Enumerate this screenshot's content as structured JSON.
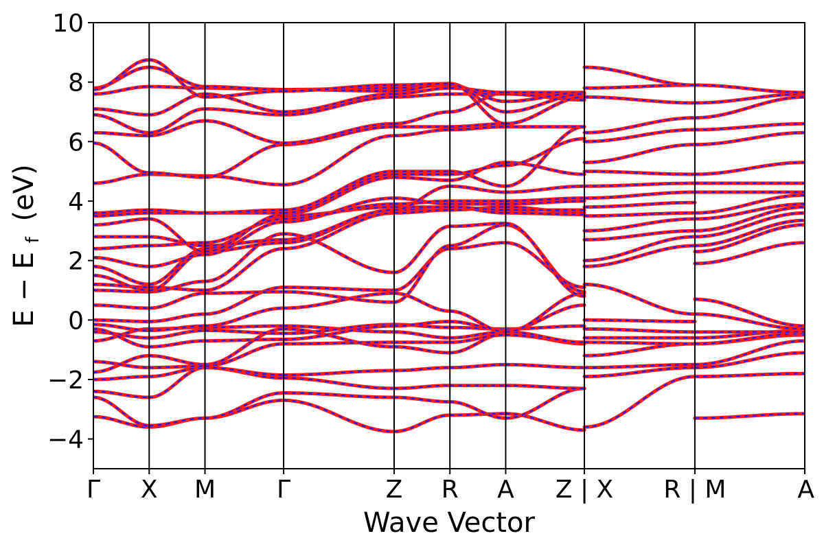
{
  "chart_data": {
    "type": "line",
    "title": "",
    "xlabel": "Wave Vector",
    "ylabel_main": "E − E",
    "ylabel_sub": "f",
    "ylabel_unit": "(eV)",
    "ylim": [
      -5,
      10
    ],
    "yticks": [
      {
        "value": -4,
        "label": "−4"
      },
      {
        "value": -2,
        "label": "−2"
      },
      {
        "value": 0,
        "label": "0"
      },
      {
        "value": 2,
        "label": "2"
      },
      {
        "value": 4,
        "label": "4"
      },
      {
        "value": 6,
        "label": "6"
      },
      {
        "value": 8,
        "label": "8"
      },
      {
        "value": 10,
        "label": "10"
      }
    ],
    "xlim": [
      0,
      12.75
    ],
    "kpoints": [
      {
        "x": 0,
        "label": "Γ"
      },
      {
        "x": 1,
        "label": "X"
      },
      {
        "x": 2,
        "label": "M"
      },
      {
        "x": 3.41,
        "label": "Γ"
      },
      {
        "x": 5.39,
        "label": "Z"
      },
      {
        "x": 6.39,
        "label": "R"
      },
      {
        "x": 7.39,
        "label": "A"
      },
      {
        "x": 8.8,
        "label": "Z | X"
      },
      {
        "x": 10.78,
        "label": "R | M"
      },
      {
        "x": 12.75,
        "label": "A"
      }
    ],
    "colors": {
      "band_red": "#ff1a1a",
      "band_blue": "#1a1aff",
      "axes": "#000000"
    },
    "segments": [
      {
        "from": 0,
        "to": 1,
        "bands": [
          [
            -3.25,
            -3.6
          ],
          [
            -2.6,
            -3.55
          ],
          [
            -2.4,
            -2.6
          ],
          [
            -2.0,
            -1.9
          ],
          [
            -1.75,
            -1.2
          ],
          [
            -1.4,
            -1.6
          ],
          [
            -0.7,
            -0.3
          ],
          [
            -0.4,
            -0.6
          ],
          [
            -0.3,
            -0.9
          ],
          [
            -0.15,
            -0.35
          ],
          [
            0.0,
            -0.05
          ],
          [
            0.5,
            0.4
          ],
          [
            1.0,
            0.95
          ],
          [
            1.2,
            1.1
          ],
          [
            1.5,
            1.0
          ],
          [
            1.8,
            1.2
          ],
          [
            2.1,
            1.8
          ],
          [
            2.4,
            2.5
          ],
          [
            2.8,
            2.8
          ],
          [
            3.2,
            3.4
          ],
          [
            3.5,
            3.6
          ],
          [
            3.6,
            3.7
          ],
          [
            4.6,
            4.9
          ],
          [
            5.95,
            4.95
          ],
          [
            6.3,
            6.2
          ],
          [
            6.9,
            6.3
          ],
          [
            7.1,
            6.9
          ],
          [
            7.6,
            7.85
          ],
          [
            7.8,
            8.5
          ],
          [
            7.75,
            8.75
          ]
        ]
      },
      {
        "from": 1,
        "to": 2,
        "bands": [
          [
            -3.6,
            -3.3
          ],
          [
            -3.55,
            -3.3
          ],
          [
            -2.6,
            -1.6
          ],
          [
            -1.9,
            -1.6
          ],
          [
            -1.2,
            -1.5
          ],
          [
            -1.6,
            -1.55
          ],
          [
            -0.3,
            -0.25
          ],
          [
            -0.6,
            -0.35
          ],
          [
            -0.9,
            -0.7
          ],
          [
            -0.35,
            -0.2
          ],
          [
            -0.05,
            0.2
          ],
          [
            0.4,
            0.9
          ],
          [
            0.95,
            1.3
          ],
          [
            1.1,
            1.0
          ],
          [
            1.0,
            2.3
          ],
          [
            1.2,
            2.4
          ],
          [
            1.8,
            2.2
          ],
          [
            2.5,
            2.6
          ],
          [
            2.8,
            2.5
          ],
          [
            3.4,
            2.3
          ],
          [
            3.6,
            3.6
          ],
          [
            3.7,
            3.6
          ],
          [
            4.9,
            4.85
          ],
          [
            4.95,
            4.8
          ],
          [
            6.2,
            6.7
          ],
          [
            6.3,
            7.1
          ],
          [
            6.9,
            7.6
          ],
          [
            7.85,
            7.8
          ],
          [
            8.5,
            7.85
          ],
          [
            8.75,
            7.5
          ]
        ]
      },
      {
        "from": 2,
        "to": 3.41,
        "bands": [
          [
            -3.3,
            -2.7
          ],
          [
            -3.3,
            -2.45
          ],
          [
            -1.6,
            -1.95
          ],
          [
            -1.6,
            -1.85
          ],
          [
            -1.5,
            -0.3
          ],
          [
            -1.55,
            -0.8
          ],
          [
            -0.25,
            -0.2
          ],
          [
            -0.35,
            -0.45
          ],
          [
            -0.7,
            -0.65
          ],
          [
            -0.2,
            0.4
          ],
          [
            0.2,
            1.1
          ],
          [
            0.9,
            0.95
          ],
          [
            1.3,
            2.9
          ],
          [
            1.0,
            2.4
          ],
          [
            2.3,
            2.6
          ],
          [
            2.4,
            3.5
          ],
          [
            2.2,
            3.3
          ],
          [
            2.6,
            3.4
          ],
          [
            2.5,
            2.7
          ],
          [
            2.3,
            3.55
          ],
          [
            3.6,
            3.6
          ],
          [
            3.6,
            3.7
          ],
          [
            4.85,
            4.55
          ],
          [
            4.8,
            5.9
          ],
          [
            6.7,
            5.95
          ],
          [
            7.1,
            6.9
          ],
          [
            7.6,
            7.0
          ],
          [
            7.8,
            7.75
          ],
          [
            7.85,
            7.75
          ],
          [
            7.5,
            7.7
          ]
        ]
      },
      {
        "from": 3.41,
        "to": 5.39,
        "bands": [
          [
            -2.7,
            -3.75
          ],
          [
            -2.45,
            -2.6
          ],
          [
            -1.95,
            -2.3
          ],
          [
            -1.85,
            -1.7
          ],
          [
            -0.3,
            -0.9
          ],
          [
            -0.8,
            -0.75
          ],
          [
            -0.2,
            -0.4
          ],
          [
            -0.45,
            -0.15
          ],
          [
            -0.65,
            -0.2
          ],
          [
            0.4,
            0.9
          ],
          [
            1.1,
            1.0
          ],
          [
            0.95,
            0.6
          ],
          [
            2.9,
            1.6
          ],
          [
            2.4,
            3.6
          ],
          [
            2.6,
            3.7
          ],
          [
            3.5,
            3.8
          ],
          [
            3.3,
            4.1
          ],
          [
            3.4,
            3.9
          ],
          [
            2.7,
            3.7
          ],
          [
            3.55,
            4.8
          ],
          [
            3.6,
            4.9
          ],
          [
            3.7,
            5.0
          ],
          [
            4.55,
            6.2
          ],
          [
            5.9,
            6.5
          ],
          [
            5.95,
            6.6
          ],
          [
            6.9,
            7.5
          ],
          [
            7.0,
            7.6
          ],
          [
            7.75,
            7.8
          ],
          [
            7.75,
            7.7
          ],
          [
            7.7,
            7.9
          ]
        ]
      },
      {
        "from": 5.39,
        "to": 6.39,
        "bands": [
          [
            -3.75,
            -3.2
          ],
          [
            -2.6,
            -2.75
          ],
          [
            -2.3,
            -2.2
          ],
          [
            -1.7,
            -1.6
          ],
          [
            -0.9,
            -1.1
          ],
          [
            -0.75,
            -0.75
          ],
          [
            -0.4,
            -0.6
          ],
          [
            -0.15,
            -0.25
          ],
          [
            -0.2,
            -0.05
          ],
          [
            0.9,
            0.3
          ],
          [
            1.0,
            2.4
          ],
          [
            0.6,
            2.5
          ],
          [
            1.6,
            3.15
          ],
          [
            3.6,
            3.7
          ],
          [
            3.7,
            3.8
          ],
          [
            3.8,
            3.8
          ],
          [
            4.1,
            3.9
          ],
          [
            3.9,
            4.0
          ],
          [
            3.7,
            4.5
          ],
          [
            4.8,
            4.7
          ],
          [
            4.9,
            4.9
          ],
          [
            5.0,
            5.0
          ],
          [
            6.2,
            6.4
          ],
          [
            6.5,
            6.5
          ],
          [
            6.6,
            7.0
          ],
          [
            7.5,
            7.6
          ],
          [
            7.6,
            7.8
          ],
          [
            7.8,
            7.9
          ],
          [
            7.7,
            7.95
          ],
          [
            7.9,
            7.95
          ]
        ]
      },
      {
        "from": 6.39,
        "to": 7.39,
        "bands": [
          [
            -3.2,
            -3.15
          ],
          [
            -2.75,
            -3.3
          ],
          [
            -2.2,
            -2.2
          ],
          [
            -1.6,
            -1.5
          ],
          [
            -1.1,
            -0.45
          ],
          [
            -0.75,
            -0.5
          ],
          [
            -0.6,
            -0.4
          ],
          [
            -0.25,
            -0.3
          ],
          [
            -0.05,
            -0.35
          ],
          [
            0.3,
            -0.4
          ],
          [
            2.4,
            2.6
          ],
          [
            2.5,
            3.2
          ],
          [
            3.15,
            3.25
          ],
          [
            3.7,
            3.8
          ],
          [
            3.8,
            3.6
          ],
          [
            3.8,
            3.7
          ],
          [
            3.9,
            3.9
          ],
          [
            4.0,
            4.0
          ],
          [
            4.5,
            4.3
          ],
          [
            4.7,
            5.3
          ],
          [
            4.9,
            5.2
          ],
          [
            5.0,
            4.5
          ],
          [
            6.4,
            6.5
          ],
          [
            6.5,
            6.6
          ],
          [
            7.0,
            7.65
          ],
          [
            7.6,
            7.6
          ],
          [
            7.8,
            7.65
          ],
          [
            7.9,
            7.35
          ],
          [
            7.95,
            7.0
          ],
          [
            7.95,
            6.6
          ]
        ]
      },
      {
        "from": 7.39,
        "to": 8.8,
        "bands": [
          [
            -3.15,
            -3.7
          ],
          [
            -3.3,
            -2.3
          ],
          [
            -2.2,
            -2.3
          ],
          [
            -1.5,
            -1.6
          ],
          [
            -0.45,
            -0.8
          ],
          [
            -0.5,
            -0.75
          ],
          [
            -0.4,
            -0.75
          ],
          [
            -0.3,
            -0.2
          ],
          [
            -0.35,
            0.5
          ],
          [
            -0.4,
            0.9
          ],
          [
            2.6,
            1.1
          ],
          [
            3.2,
            0.95
          ],
          [
            3.25,
            0.8
          ],
          [
            3.8,
            3.6
          ],
          [
            3.6,
            3.55
          ],
          [
            3.7,
            3.7
          ],
          [
            3.9,
            4.0
          ],
          [
            4.0,
            4.1
          ],
          [
            4.3,
            4.5
          ],
          [
            5.3,
            4.9
          ],
          [
            5.2,
            6.1
          ],
          [
            4.5,
            6.5
          ],
          [
            6.5,
            6.5
          ],
          [
            6.6,
            7.5
          ],
          [
            7.65,
            7.55
          ],
          [
            7.6,
            7.4
          ],
          [
            7.65,
            7.65
          ],
          [
            7.35,
            7.65
          ],
          [
            7.0,
            7.6
          ],
          [
            6.6,
            7.5
          ]
        ]
      },
      {
        "from": 8.8,
        "to": 10.78,
        "bands": [
          [
            -3.6,
            -1.9
          ],
          [
            -1.9,
            -1.6
          ],
          [
            -1.6,
            -1.5
          ],
          [
            -1.2,
            -0.8
          ],
          [
            -0.75,
            -0.8
          ],
          [
            -0.6,
            -0.6
          ],
          [
            -0.3,
            -0.4
          ],
          [
            0.0,
            -0.05
          ],
          [
            1.2,
            0.2
          ],
          [
            1.8,
            2.5
          ],
          [
            2.0,
            2.8
          ],
          [
            2.7,
            3.0
          ],
          [
            3.0,
            3.4
          ],
          [
            3.5,
            3.6
          ],
          [
            3.8,
            3.95
          ],
          [
            4.1,
            4.3
          ],
          [
            4.5,
            4.6
          ],
          [
            5.0,
            4.9
          ],
          [
            5.3,
            5.9
          ],
          [
            6.0,
            6.4
          ],
          [
            6.3,
            6.8
          ],
          [
            7.5,
            7.3
          ],
          [
            7.8,
            7.9
          ],
          [
            8.5,
            7.9
          ]
        ]
      },
      {
        "from": 10.78,
        "to": 12.75,
        "bands": [
          [
            -3.3,
            -3.15
          ],
          [
            -1.9,
            -1.8
          ],
          [
            -1.6,
            -1.1
          ],
          [
            -1.5,
            -0.7
          ],
          [
            -0.8,
            -0.5
          ],
          [
            -0.8,
            -0.45
          ],
          [
            -0.6,
            -0.35
          ],
          [
            -0.4,
            -0.4
          ],
          [
            0.2,
            -0.3
          ],
          [
            0.7,
            -0.2
          ],
          [
            1.9,
            2.6
          ],
          [
            2.3,
            3.2
          ],
          [
            2.5,
            3.35
          ],
          [
            2.8,
            3.6
          ],
          [
            3.0,
            3.8
          ],
          [
            3.4,
            3.9
          ],
          [
            3.6,
            4.2
          ],
          [
            4.3,
            4.3
          ],
          [
            4.6,
            4.6
          ],
          [
            4.9,
            5.3
          ],
          [
            5.9,
            6.3
          ],
          [
            6.4,
            6.6
          ],
          [
            6.8,
            7.5
          ],
          [
            7.3,
            7.6
          ],
          [
            7.9,
            7.65
          ]
        ]
      }
    ]
  }
}
